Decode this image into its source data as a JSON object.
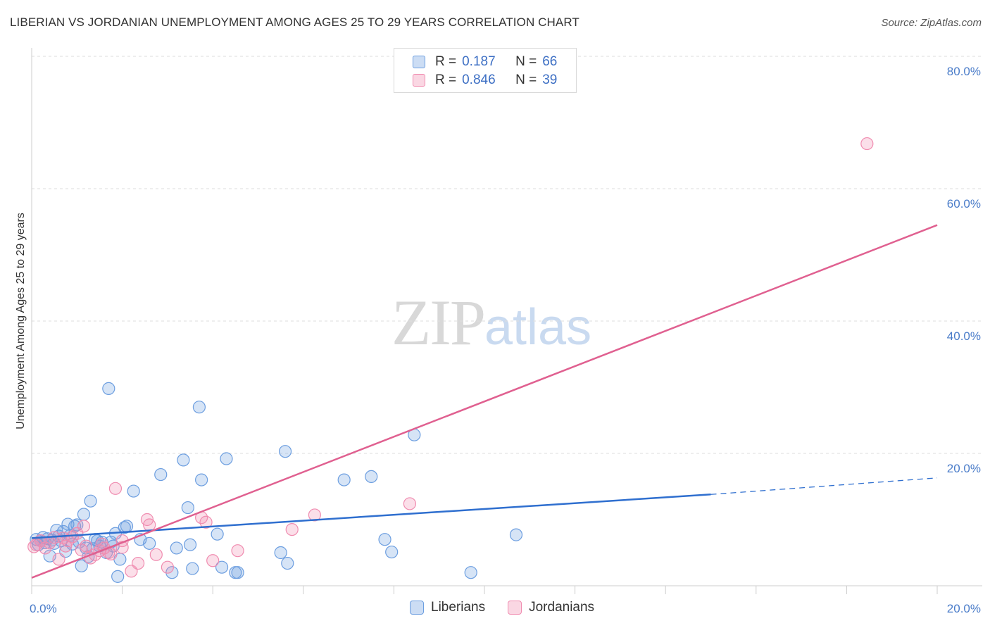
{
  "header": {
    "title": "LIBERIAN VS JORDANIAN UNEMPLOYMENT AMONG AGES 25 TO 29 YEARS CORRELATION CHART",
    "source": "Source: ZipAtlas.com"
  },
  "watermark": {
    "zip": "ZIP",
    "atlas": "atlas"
  },
  "legend": {
    "rows": [
      {
        "r_label": "R =",
        "r_value": "0.187",
        "n_label": "N =",
        "n_value": "66",
        "color": "#6c9ee0"
      },
      {
        "r_label": "R =",
        "r_value": "0.846",
        "n_label": "N =",
        "n_value": "39",
        "color": "#f08cb0"
      }
    ]
  },
  "bottom_legend": {
    "items": [
      {
        "label": "Liberians",
        "color": "#6c9ee0"
      },
      {
        "label": "Jordanians",
        "color": "#f08cb0"
      }
    ]
  },
  "chart_data": {
    "type": "scatter",
    "title": "LIBERIAN VS JORDANIAN UNEMPLOYMENT AMONG AGES 25 TO 29 YEARS CORRELATION CHART",
    "xlabel": "",
    "ylabel": "Unemployment Among Ages 25 to 29 years",
    "xlim": [
      0,
      20
    ],
    "ylim": [
      0,
      80
    ],
    "x_tick_labels": [
      "0.0%",
      "20.0%"
    ],
    "y_ticks": [
      20,
      40,
      60,
      80
    ],
    "y_tick_labels": [
      "20.0%",
      "40.0%",
      "60.0%",
      "80.0%"
    ],
    "grid": true,
    "series": [
      {
        "name": "Liberians",
        "color": "#6c9ee0",
        "line_color": "#2f6fcf",
        "trend": {
          "x0": 0,
          "y0": 7.2,
          "x1": 15,
          "y1": 13.8,
          "dash_to_x": 20,
          "dash_to_y": 16.3
        },
        "points": [
          [
            0.1,
            7.0
          ],
          [
            0.15,
            6.2
          ],
          [
            0.2,
            6.8
          ],
          [
            0.25,
            7.3
          ],
          [
            0.3,
            6.5
          ],
          [
            0.35,
            7.1
          ],
          [
            0.4,
            4.5
          ],
          [
            0.45,
            6.9
          ],
          [
            0.5,
            6.4
          ],
          [
            0.55,
            8.4
          ],
          [
            0.6,
            7.5
          ],
          [
            0.65,
            6.8
          ],
          [
            0.7,
            8.2
          ],
          [
            0.75,
            5.2
          ],
          [
            0.8,
            9.3
          ],
          [
            0.85,
            7.6
          ],
          [
            0.9,
            6.3
          ],
          [
            0.95,
            9.0
          ],
          [
            1.0,
            9.2
          ],
          [
            1.05,
            6.6
          ],
          [
            1.1,
            3.0
          ],
          [
            1.15,
            10.8
          ],
          [
            1.2,
            5.7
          ],
          [
            1.25,
            4.4
          ],
          [
            1.3,
            12.8
          ],
          [
            1.35,
            5.6
          ],
          [
            1.4,
            7.0
          ],
          [
            1.45,
            6.8
          ],
          [
            1.5,
            6.0
          ],
          [
            1.55,
            6.6
          ],
          [
            1.65,
            5.0
          ],
          [
            1.7,
            29.8
          ],
          [
            1.75,
            6.6
          ],
          [
            1.8,
            6.0
          ],
          [
            1.85,
            7.9
          ],
          [
            1.9,
            1.4
          ],
          [
            1.95,
            4.0
          ],
          [
            2.1,
            9.0
          ],
          [
            2.25,
            14.3
          ],
          [
            2.4,
            7.0
          ],
          [
            2.6,
            6.4
          ],
          [
            2.85,
            16.8
          ],
          [
            3.1,
            2.0
          ],
          [
            3.2,
            5.7
          ],
          [
            3.35,
            19.0
          ],
          [
            3.45,
            11.8
          ],
          [
            3.5,
            6.2
          ],
          [
            3.55,
            2.6
          ],
          [
            3.7,
            27.0
          ],
          [
            3.75,
            16.0
          ],
          [
            4.1,
            7.8
          ],
          [
            4.2,
            2.8
          ],
          [
            4.3,
            19.2
          ],
          [
            4.5,
            2.0
          ],
          [
            4.55,
            2.0
          ],
          [
            5.5,
            5.0
          ],
          [
            5.6,
            20.3
          ],
          [
            5.65,
            3.4
          ],
          [
            6.9,
            16.0
          ],
          [
            7.5,
            16.5
          ],
          [
            7.8,
            7.0
          ],
          [
            7.95,
            5.1
          ],
          [
            8.45,
            22.8
          ],
          [
            9.7,
            2.0
          ],
          [
            10.7,
            7.7
          ],
          [
            2.05,
            8.8
          ]
        ]
      },
      {
        "name": "Jordanians",
        "color": "#f08cb0",
        "line_color": "#e06090",
        "trend": {
          "x0": 0,
          "y0": 1.2,
          "x1": 20,
          "y1": 54.5
        },
        "points": [
          [
            0.05,
            5.9
          ],
          [
            0.1,
            6.2
          ],
          [
            0.2,
            6.8
          ],
          [
            0.3,
            5.7
          ],
          [
            0.4,
            6.5
          ],
          [
            0.5,
            7.3
          ],
          [
            0.6,
            4.0
          ],
          [
            0.7,
            7.2
          ],
          [
            0.75,
            6.0
          ],
          [
            0.8,
            6.8
          ],
          [
            0.9,
            7.4
          ],
          [
            1.0,
            7.9
          ],
          [
            1.1,
            5.4
          ],
          [
            1.15,
            9.0
          ],
          [
            1.3,
            4.2
          ],
          [
            1.4,
            4.7
          ],
          [
            1.5,
            5.3
          ],
          [
            1.55,
            6.3
          ],
          [
            1.6,
            5.7
          ],
          [
            1.75,
            4.8
          ],
          [
            1.85,
            14.7
          ],
          [
            2.0,
            6.8
          ],
          [
            2.2,
            2.2
          ],
          [
            2.35,
            3.4
          ],
          [
            2.55,
            10.0
          ],
          [
            2.6,
            9.2
          ],
          [
            2.75,
            4.7
          ],
          [
            3.0,
            2.8
          ],
          [
            3.75,
            10.3
          ],
          [
            3.85,
            9.6
          ],
          [
            4.0,
            3.8
          ],
          [
            4.55,
            5.3
          ],
          [
            5.75,
            8.5
          ],
          [
            6.25,
            10.7
          ],
          [
            8.35,
            12.4
          ],
          [
            18.45,
            66.8
          ],
          [
            1.2,
            6.0
          ],
          [
            2.0,
            5.8
          ],
          [
            1.7,
            5.0
          ]
        ]
      }
    ]
  }
}
